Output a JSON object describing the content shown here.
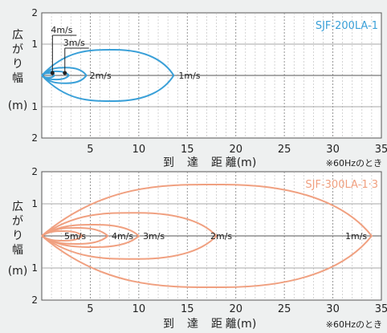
{
  "chart_data": [
    {
      "type": "line",
      "title": "SJF-200LA-1",
      "ylabel": [
        "広",
        "が",
        "り",
        "幅",
        "(m)"
      ],
      "xlabel": [
        "到",
        "達",
        "距",
        "離(m)"
      ],
      "note": "※60Hzのとき",
      "x_ticks": [
        "5",
        "10",
        "15",
        "20",
        "25",
        "30",
        "35"
      ],
      "y_ticks": [
        "2",
        "1",
        "1",
        "2"
      ],
      "xlim": [
        0,
        35
      ],
      "ylim": [
        -2,
        2
      ],
      "grid": true,
      "color": "#3aa0d8",
      "series": [
        {
          "name": "1m/s",
          "reach": 13.6,
          "half_width": 0.82
        },
        {
          "name": "2m/s",
          "reach": 4.6,
          "half_width": 0.25
        },
        {
          "name": "3m/s",
          "reach": 2.8,
          "half_width": 0.13
        },
        {
          "name": "4m/s",
          "reach": 1.3,
          "half_width": 0.07
        }
      ]
    },
    {
      "type": "line",
      "title": "SJF-300LA-1·3",
      "ylabel": [
        "広",
        "が",
        "り",
        "幅",
        "(m)"
      ],
      "xlabel": [
        "到",
        "達",
        "距",
        "離(m)"
      ],
      "note": "※60Hzのとき",
      "x_ticks": [
        "5",
        "10",
        "15",
        "20",
        "25",
        "30",
        "35"
      ],
      "y_ticks": [
        "2",
        "1",
        "1",
        "2"
      ],
      "xlim": [
        0,
        35
      ],
      "ylim": [
        -2,
        2
      ],
      "grid": true,
      "color": "#f0a080",
      "series": [
        {
          "name": "1m/s",
          "reach": 34.0,
          "half_width": 1.6
        },
        {
          "name": "2m/s",
          "reach": 18.0,
          "half_width": 0.72
        },
        {
          "name": "3m/s",
          "reach": 10.0,
          "half_width": 0.35
        },
        {
          "name": "4m/s",
          "reach": 6.8,
          "half_width": 0.25
        },
        {
          "name": "5m/s",
          "reach": 4.2,
          "half_width": 0.15
        }
      ]
    }
  ]
}
